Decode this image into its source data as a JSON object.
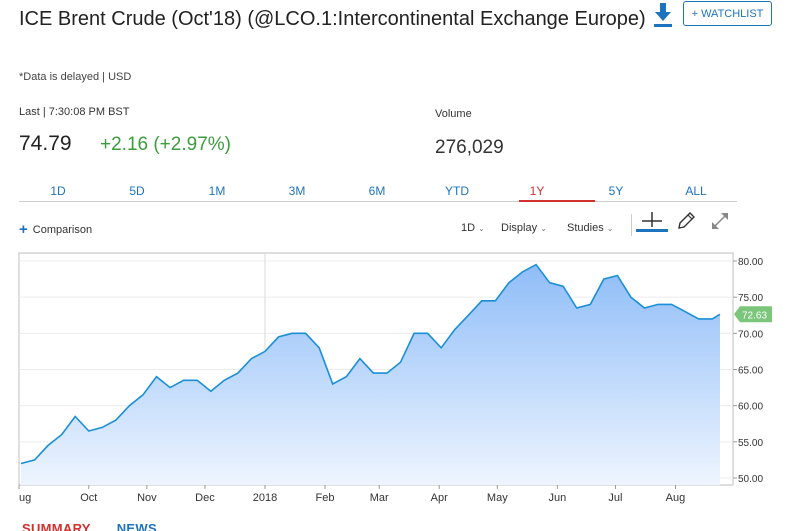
{
  "quote": {
    "title": "ICE Brent Crude (Oct'18) (@LCO.1:Intercontinental Exchange Europe)",
    "delay_note": "*Data is delayed | USD",
    "last_label": "Last | 7:30:08 PM BST",
    "last_price": "74.79",
    "change": "+2.16 (+2.97%)",
    "volume_label": "Volume",
    "volume_value": "276,029"
  },
  "header": {
    "watchlist_label": "+ WATCHLIST",
    "download_icon": "download-icon"
  },
  "ranges": {
    "items": [
      "1D",
      "5D",
      "1M",
      "3M",
      "6M",
      "YTD",
      "1Y",
      "5Y",
      "ALL"
    ],
    "active": "1Y"
  },
  "toolbar": {
    "comparison_label": "Comparison",
    "interval_label": "1D",
    "display_label": "Display",
    "studies_label": "Studies",
    "icons": [
      "crosshair-icon",
      "pencil-icon",
      "expand-icon"
    ]
  },
  "bottom_tabs": {
    "summary_label": "SUMMARY",
    "news_label": "NEWS"
  },
  "colors": {
    "accent": "#1e73be",
    "positive": "#3c9d3c",
    "active_tab": "#d0312d",
    "line": "#1a8fd6",
    "area_top": "#8fbdf8",
    "area_bottom": "#eef5ff",
    "last_badge": "#7cc67c"
  },
  "chart_data": {
    "type": "area",
    "x_tick_labels": [
      "ug",
      "Oct",
      "Nov",
      "Dec",
      "2018",
      "Feb",
      "Mar",
      "Apr",
      "May",
      "Jun",
      "Jul",
      "Aug"
    ],
    "y_ticks": [
      "80.00",
      "75.00",
      "70.00",
      "65.00",
      "60.00",
      "55.00",
      "50.00"
    ],
    "ylim": [
      50,
      80
    ],
    "last_value_label": "72.63",
    "series": [
      {
        "x": [
          "2017-08-28",
          "2017-09-04",
          "2017-09-11",
          "2017-09-18",
          "2017-09-25",
          "2017-10-02",
          "2017-10-09",
          "2017-10-16",
          "2017-10-23",
          "2017-10-30",
          "2017-11-06",
          "2017-11-13",
          "2017-11-20",
          "2017-11-27",
          "2017-12-04",
          "2017-12-11",
          "2017-12-18",
          "2017-12-25",
          "2018-01-01",
          "2018-01-08",
          "2018-01-15",
          "2018-01-22",
          "2018-01-29",
          "2018-02-05",
          "2018-02-12",
          "2018-02-19",
          "2018-02-26",
          "2018-03-05",
          "2018-03-12",
          "2018-03-19",
          "2018-03-26",
          "2018-04-02",
          "2018-04-09",
          "2018-04-16",
          "2018-04-23",
          "2018-04-30",
          "2018-05-07",
          "2018-05-14",
          "2018-05-21",
          "2018-05-28",
          "2018-06-04",
          "2018-06-11",
          "2018-06-18",
          "2018-06-25",
          "2018-07-02",
          "2018-07-09",
          "2018-07-16",
          "2018-07-23",
          "2018-07-30",
          "2018-08-06",
          "2018-08-13",
          "2018-08-20",
          "2018-08-24"
        ],
        "values": [
          52.0,
          52.5,
          54.5,
          56.0,
          58.5,
          56.5,
          57.0,
          58.0,
          60.0,
          61.5,
          64.0,
          62.5,
          63.5,
          63.5,
          62.0,
          63.5,
          64.5,
          66.5,
          67.5,
          69.5,
          70.0,
          70.0,
          68.0,
          63.0,
          64.0,
          66.5,
          64.5,
          64.5,
          66.0,
          70.0,
          70.0,
          68.0,
          70.5,
          72.5,
          74.5,
          74.5,
          77.0,
          78.5,
          79.5,
          77.0,
          76.5,
          73.5,
          74.0,
          77.5,
          78.0,
          75.0,
          73.5,
          74.0,
          74.0,
          73.0,
          72.0,
          72.0,
          72.63
        ]
      }
    ]
  }
}
